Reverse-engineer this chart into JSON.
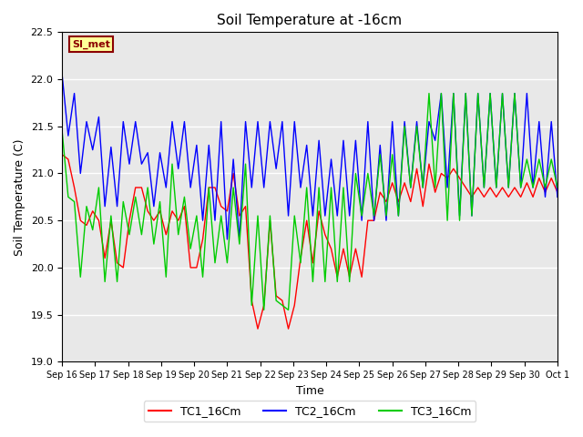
{
  "title": "Soil Temperature at -16cm",
  "xlabel": "Time",
  "ylabel": "Soil Temperature (C)",
  "ylim": [
    19.0,
    22.5
  ],
  "background_color": "#ffffff",
  "plot_bg_color": "#e8e8e8",
  "grid_color": "#ffffff",
  "annotation_text": "SI_met",
  "annotation_bg": "#ffff99",
  "annotation_border": "#8B0000",
  "legend_labels": [
    "TC1_16Cm",
    "TC2_16Cm",
    "TC3_16Cm"
  ],
  "line_colors": [
    "#ff0000",
    "#0000ff",
    "#00cc00"
  ],
  "x_tick_labels": [
    "Sep 16",
    "Sep 17",
    "Sep 18",
    "Sep 19",
    "Sep 20",
    "Sep 21",
    "Sep 22",
    "Sep 23",
    "Sep 24",
    "Sep 25",
    "Sep 26",
    "Sep 27",
    "Sep 28",
    "Sep 29",
    "Sep 30",
    "Oct 1"
  ],
  "tc1": [
    21.2,
    21.15,
    20.85,
    20.5,
    20.45,
    20.6,
    20.5,
    20.1,
    20.5,
    20.05,
    20.0,
    20.5,
    20.85,
    20.85,
    20.6,
    20.5,
    20.6,
    20.35,
    20.6,
    20.5,
    20.65,
    20.0,
    20.0,
    20.3,
    20.85,
    20.85,
    20.65,
    20.6,
    21.0,
    20.55,
    20.65,
    19.65,
    19.35,
    19.6,
    20.5,
    19.7,
    19.65,
    19.35,
    19.6,
    20.1,
    20.5,
    20.05,
    20.6,
    20.35,
    20.2,
    19.9,
    20.2,
    19.9,
    20.2,
    19.9,
    20.5,
    20.5,
    20.8,
    20.7,
    20.9,
    20.7,
    20.9,
    20.7,
    21.05,
    20.65,
    21.1,
    20.8,
    21.0,
    20.95,
    21.05,
    20.95,
    20.85,
    20.75,
    20.85,
    20.75,
    20.85,
    20.75,
    20.85,
    20.75,
    20.85,
    20.75,
    20.9,
    20.75,
    20.95,
    20.8,
    20.95,
    20.8
  ],
  "tc2": [
    22.05,
    21.4,
    21.85,
    21.0,
    21.55,
    21.25,
    21.6,
    20.65,
    21.28,
    20.65,
    21.55,
    21.1,
    21.55,
    21.1,
    21.22,
    20.65,
    21.22,
    20.85,
    21.55,
    21.05,
    21.55,
    20.85,
    21.3,
    20.5,
    21.3,
    20.5,
    21.55,
    20.3,
    21.15,
    20.3,
    21.55,
    20.85,
    21.55,
    20.85,
    21.55,
    21.05,
    21.55,
    20.55,
    21.55,
    20.85,
    21.3,
    20.55,
    21.35,
    20.55,
    21.15,
    20.55,
    21.35,
    20.55,
    21.35,
    20.5,
    21.55,
    20.5,
    21.3,
    20.5,
    21.55,
    20.55,
    21.55,
    20.85,
    21.55,
    20.85,
    21.55,
    21.35,
    21.85,
    20.85,
    21.85,
    20.55,
    21.85,
    20.55,
    21.85,
    20.85,
    21.85,
    20.85,
    21.85,
    20.85,
    21.85,
    20.85,
    21.85,
    20.85,
    21.55,
    20.75,
    21.55,
    20.75
  ],
  "tc3": [
    21.45,
    20.75,
    20.7,
    19.9,
    20.65,
    20.4,
    20.85,
    19.85,
    20.55,
    19.85,
    20.7,
    20.35,
    20.75,
    20.35,
    20.85,
    20.25,
    20.7,
    19.9,
    21.1,
    20.35,
    20.75,
    20.2,
    20.55,
    19.9,
    20.85,
    20.05,
    20.55,
    20.05,
    20.85,
    20.25,
    21.1,
    19.6,
    20.55,
    19.55,
    20.55,
    19.65,
    19.6,
    19.55,
    20.55,
    20.05,
    20.85,
    19.85,
    20.85,
    19.85,
    20.85,
    19.85,
    20.85,
    19.85,
    21.0,
    20.55,
    21.0,
    20.55,
    21.2,
    20.55,
    21.2,
    20.55,
    21.5,
    20.85,
    21.5,
    20.85,
    21.85,
    20.85,
    21.85,
    20.5,
    21.85,
    20.5,
    21.85,
    20.55,
    21.85,
    20.85,
    21.85,
    20.85,
    21.85,
    20.85,
    21.85,
    20.85,
    21.15,
    20.85,
    21.15,
    20.85,
    21.15,
    20.85
  ]
}
